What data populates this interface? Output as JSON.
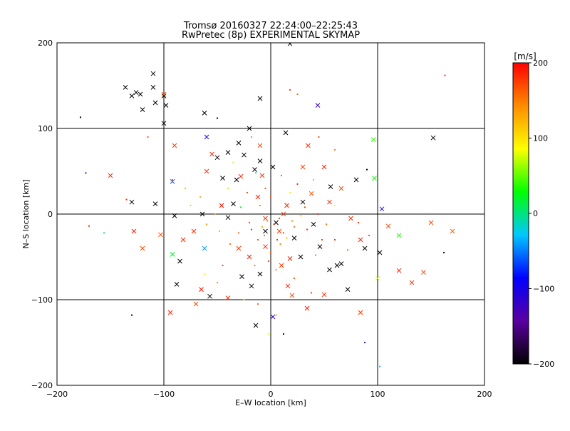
{
  "chart_data": {
    "type": "scatter",
    "title": "Tromsø 20160327 22:24:00–22:25:43",
    "subtitle": "RwPretec (8p) EXPERIMENTAL SKYMAP",
    "xlabel": "E–W location [km]",
    "ylabel": "N–S location [km]",
    "xlim": [
      -200,
      200
    ],
    "ylim": [
      -200,
      200
    ],
    "x_ticks": [
      -200,
      -100,
      0,
      100,
      200
    ],
    "y_ticks": [
      -200,
      -100,
      0,
      100,
      200
    ],
    "grid": true,
    "colorbar": {
      "label": "[m/s]",
      "range": [
        -200,
        200
      ],
      "ticks": [
        -200,
        -100,
        0,
        100,
        200
      ],
      "colors": [
        "#000000",
        "#5a00a0",
        "#0000ff",
        "#00c8ff",
        "#00ff00",
        "#ffff00",
        "#ff8c00",
        "#ff0000"
      ]
    },
    "series": [
      {
        "marker": "x",
        "points": [
          [
            -136,
            148
          ],
          [
            -130,
            138
          ],
          [
            -126,
            142
          ],
          [
            -122,
            140
          ],
          [
            -120,
            122
          ],
          [
            -110,
            148
          ],
          [
            -110,
            164
          ],
          [
            -100,
            138
          ],
          [
            -108,
            130
          ],
          [
            -98,
            127
          ],
          [
            -100,
            106
          ],
          [
            -62,
            118
          ],
          [
            -60,
            90
          ],
          [
            -50,
            66
          ],
          [
            -40,
            72
          ],
          [
            -30,
            83
          ],
          [
            -20,
            100
          ],
          [
            -25,
            69
          ],
          [
            -10,
            135
          ],
          [
            2,
            55
          ],
          [
            14,
            95
          ],
          [
            18,
            199
          ],
          [
            -10,
            62
          ],
          [
            -15,
            52
          ],
          [
            -130,
            14
          ],
          [
            -90,
            -2
          ],
          [
            -40,
            -4
          ],
          [
            -88,
            -82
          ],
          [
            -57,
            -96
          ],
          [
            -10,
            -70
          ],
          [
            -27,
            -73
          ],
          [
            -14,
            -130
          ],
          [
            2,
            -120
          ],
          [
            40,
            -12
          ],
          [
            46,
            -38
          ],
          [
            55,
            -65
          ],
          [
            62,
            -60
          ],
          [
            72,
            -88
          ],
          [
            88,
            -40
          ],
          [
            102,
            -45
          ],
          [
            80,
            40
          ],
          [
            56,
            32
          ],
          [
            44,
            127
          ],
          [
            -108,
            12
          ],
          [
            -32,
            40
          ],
          [
            -45,
            42
          ],
          [
            -35,
            12
          ],
          [
            22,
            -28
          ],
          [
            5,
            -10
          ],
          [
            -5,
            -20
          ],
          [
            152,
            89
          ],
          [
            104,
            6
          ],
          [
            28,
            -50
          ],
          [
            66,
            -58
          ],
          [
            -18,
            -84
          ],
          [
            -64,
            0
          ],
          [
            -85,
            -55
          ],
          [
            30,
            14
          ]
        ],
        "velocities": [
          -200,
          -200,
          -200,
          -200,
          -200,
          -200,
          -200,
          -200,
          -200,
          -200,
          -200,
          -200,
          -120,
          -200,
          -200,
          -200,
          -200,
          -200,
          -200,
          -200,
          -200,
          -200,
          -200,
          -200,
          -200,
          -200,
          -200,
          -200,
          -200,
          -200,
          -200,
          -200,
          -120,
          -200,
          -200,
          -200,
          -200,
          -200,
          -200,
          -200,
          -200,
          -200,
          -120,
          -200,
          -200,
          -200,
          -200,
          -200,
          -200,
          -200,
          -200,
          -110,
          -200,
          -200,
          -200,
          -200,
          -200,
          -200
        ]
      },
      {
        "marker": "x",
        "points": [
          [
            -150,
            45
          ],
          [
            -128,
            -20
          ],
          [
            -103,
            -24
          ],
          [
            -94,
            -115
          ],
          [
            -100,
            140
          ],
          [
            -90,
            80
          ],
          [
            -60,
            50
          ],
          [
            -65,
            -88
          ],
          [
            -70,
            -105
          ],
          [
            -40,
            -98
          ],
          [
            -20,
            -50
          ],
          [
            -5,
            -38
          ],
          [
            10,
            -60
          ],
          [
            16,
            -84
          ],
          [
            20,
            -95
          ],
          [
            34,
            -110
          ],
          [
            50,
            -94
          ],
          [
            84,
            -115
          ],
          [
            132,
            -80
          ],
          [
            143,
            -68
          ],
          [
            120,
            -66
          ],
          [
            110,
            -14
          ],
          [
            84,
            -30
          ],
          [
            75,
            -5
          ],
          [
            66,
            30
          ],
          [
            55,
            14
          ],
          [
            35,
            80
          ],
          [
            30,
            55
          ],
          [
            50,
            55
          ],
          [
            -10,
            80
          ],
          [
            -28,
            44
          ],
          [
            -5,
            -5
          ],
          [
            8,
            -20
          ],
          [
            -12,
            20
          ],
          [
            38,
            24
          ],
          [
            18,
            -52
          ],
          [
            -82,
            -30
          ],
          [
            -30,
            -40
          ],
          [
            15,
            10
          ],
          [
            150,
            -10
          ],
          [
            170,
            -20
          ],
          [
            -120,
            -40
          ],
          [
            -55,
            70
          ],
          [
            -8,
            45
          ],
          [
            12,
            0
          ],
          [
            -46,
            10
          ],
          [
            -72,
            -20
          ]
        ],
        "velocities": [
          180,
          190,
          170,
          185,
          160,
          175,
          180,
          195,
          170,
          185,
          190,
          180,
          175,
          185,
          170,
          190,
          185,
          175,
          180,
          170,
          190,
          175,
          185,
          180,
          170,
          190,
          180,
          175,
          185,
          170,
          190,
          180,
          175,
          185,
          170,
          190,
          180,
          175,
          185,
          170,
          160,
          170,
          185,
          180,
          175,
          190,
          185
        ]
      },
      {
        "marker": "x",
        "points": [
          [
            -92,
            -47
          ],
          [
            96,
            87
          ],
          [
            97,
            42
          ],
          [
            100,
            -75
          ],
          [
            120,
            -25
          ],
          [
            -92,
            38
          ],
          [
            -62,
            -40
          ]
        ],
        "velocities": [
          20,
          40,
          30,
          80,
          35,
          -60,
          -40
        ]
      },
      {
        "marker": "dot",
        "points": [
          [
            -178,
            113
          ],
          [
            -50,
            112
          ],
          [
            -115,
            90
          ],
          [
            -173,
            48
          ],
          [
            -170,
            -14
          ],
          [
            -156,
            -22
          ],
          [
            -135,
            17
          ],
          [
            -130,
            -118
          ],
          [
            -50,
            -80
          ],
          [
            12,
            -140
          ],
          [
            18,
            145
          ],
          [
            25,
            140
          ],
          [
            45,
            90
          ],
          [
            60,
            75
          ],
          [
            90,
            52
          ],
          [
            88,
            -150
          ],
          [
            102,
            -178
          ],
          [
            163,
            162
          ],
          [
            162,
            -45
          ],
          [
            -92,
            40
          ],
          [
            -80,
            30
          ],
          [
            -75,
            10
          ],
          [
            -60,
            -12
          ],
          [
            -62,
            -70
          ],
          [
            -45,
            -60
          ],
          [
            -25,
            -100
          ],
          [
            -12,
            -105
          ],
          [
            -2,
            -140
          ],
          [
            5,
            -118
          ],
          [
            22,
            -75
          ],
          [
            38,
            -92
          ],
          [
            42,
            -48
          ],
          [
            60,
            -30
          ],
          [
            72,
            -42
          ],
          [
            82,
            -10
          ],
          [
            92,
            -25
          ],
          [
            -35,
            60
          ],
          [
            -18,
            90
          ],
          [
            0,
            20
          ],
          [
            -10,
            10
          ],
          [
            -20,
            -10
          ],
          [
            -30,
            -22
          ],
          [
            -8,
            -15
          ],
          [
            6,
            -30
          ],
          [
            12,
            -22
          ],
          [
            20,
            -8
          ],
          [
            28,
            -2
          ],
          [
            34,
            -18
          ],
          [
            14,
            12
          ],
          [
            -5,
            30
          ],
          [
            -40,
            30
          ],
          [
            -48,
            -20
          ],
          [
            52,
            -12
          ],
          [
            40,
            40
          ],
          [
            25,
            35
          ],
          [
            -15,
            -60
          ],
          [
            5,
            -65
          ],
          [
            -2,
            -55
          ],
          [
            8,
            -5
          ],
          [
            -3,
            -8
          ],
          [
            3,
            -12
          ],
          [
            -6,
            -25
          ],
          [
            9,
            -35
          ],
          [
            -12,
            -30
          ],
          [
            15,
            -28
          ],
          [
            -18,
            -18
          ],
          [
            22,
            -15
          ],
          [
            18,
            25
          ],
          [
            -22,
            25
          ],
          [
            32,
            8
          ],
          [
            -28,
            8
          ],
          [
            44,
            0
          ],
          [
            -52,
            0
          ],
          [
            0,
            -45
          ],
          [
            10,
            45
          ],
          [
            -14,
            48
          ],
          [
            48,
            -30
          ],
          [
            -38,
            -35
          ],
          [
            60,
            10
          ],
          [
            -66,
            20
          ]
        ],
        "velocities": [
          -200,
          -200,
          170,
          -110,
          190,
          -10,
          180,
          -200,
          140,
          -200,
          180,
          160,
          175,
          150,
          -200,
          -120,
          -30,
          185,
          -200,
          170,
          120,
          60,
          140,
          90,
          175,
          110,
          165,
          80,
          130,
          170,
          180,
          150,
          190,
          160,
          185,
          175,
          100,
          30,
          170,
          150,
          180,
          160,
          130,
          190,
          175,
          140,
          110,
          185,
          150,
          165,
          70,
          125,
          160,
          45,
          185,
          155,
          140,
          180,
          175,
          130,
          190,
          165,
          150,
          175,
          120,
          185,
          160,
          95,
          175,
          180,
          20,
          190,
          140,
          170,
          165,
          -10,
          185,
          160,
          90,
          130
        ]
      }
    ]
  }
}
